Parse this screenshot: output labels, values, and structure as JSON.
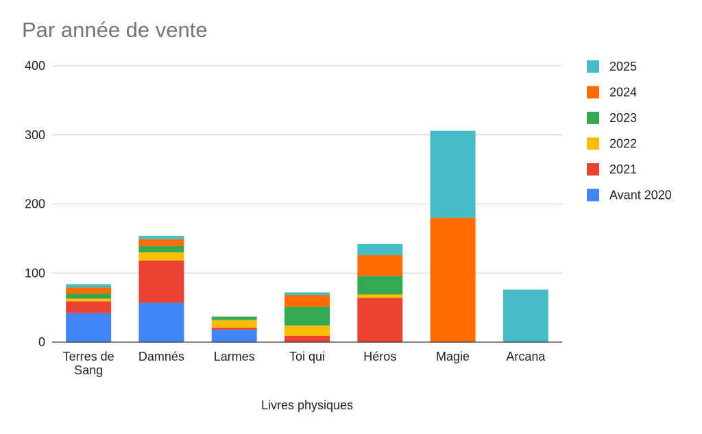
{
  "chart_data": {
    "type": "bar",
    "stacked": true,
    "title": "Par année de vente",
    "xlabel": "Livres physiques",
    "ylabel": "",
    "ylim": [
      0,
      400
    ],
    "yticks": [
      0,
      100,
      200,
      300,
      400
    ],
    "grid": true,
    "legend_position": "right",
    "categories": [
      [
        "Terres de",
        "Sang"
      ],
      [
        "Damnés"
      ],
      [
        "Larmes"
      ],
      [
        "Toi qui"
      ],
      [
        "Héros"
      ],
      [
        "Magie"
      ],
      [
        "Arcana"
      ]
    ],
    "series": [
      {
        "name": "Avant 2020",
        "color": "#4285F4",
        "values": [
          42,
          57,
          18,
          0,
          0,
          0,
          0
        ]
      },
      {
        "name": "2021",
        "color": "#EA4335",
        "values": [
          17,
          61,
          3,
          9,
          64,
          0,
          0
        ]
      },
      {
        "name": "2022",
        "color": "#FBBC04",
        "values": [
          4,
          12,
          11,
          15,
          5,
          0,
          0
        ]
      },
      {
        "name": "2023",
        "color": "#34A853",
        "values": [
          7,
          9,
          5,
          27,
          27,
          0,
          0
        ]
      },
      {
        "name": "2024",
        "color": "#FF6D01",
        "values": [
          9,
          10,
          0,
          17,
          30,
          180,
          0
        ]
      },
      {
        "name": "2025",
        "color": "#46BDC6",
        "values": [
          5,
          5,
          0,
          4,
          16,
          126,
          76
        ]
      }
    ]
  }
}
